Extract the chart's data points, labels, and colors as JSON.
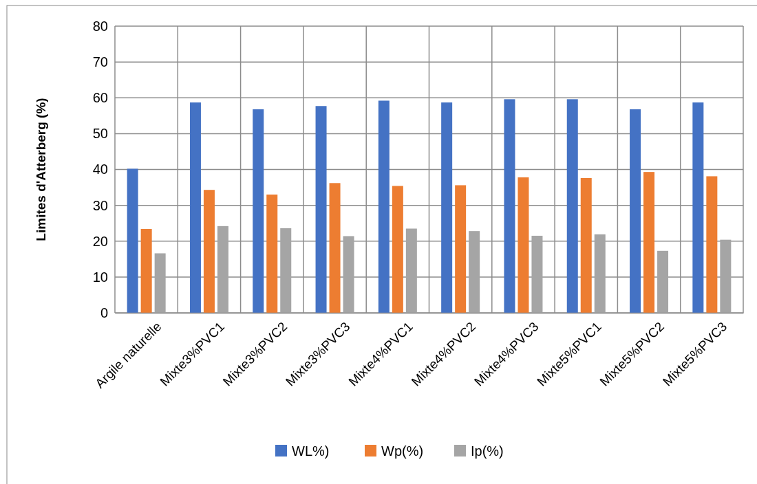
{
  "chart_data": {
    "type": "bar",
    "ylabel": "Limites d'Atterberg (%)",
    "categories": [
      "Argile naturelle",
      "Mixte3%PVC1",
      "Mixte3%PVC2",
      "Mixte3%PVC3",
      "Mixte4%PVC1",
      "Mixte4%PVC2",
      "Mixte4%PVC3",
      "Mixte5%PVC1",
      "Mixte5%PVC2",
      "Mixte5%PVC3"
    ],
    "series": [
      {
        "name": "WL%)",
        "color": "#4472c4",
        "values": [
          40.2,
          58.7,
          56.8,
          57.7,
          59.2,
          58.7,
          59.6,
          59.6,
          56.8,
          58.7
        ]
      },
      {
        "name": "Wp(%)",
        "color": "#ed7d31",
        "values": [
          23.4,
          34.3,
          33.0,
          36.2,
          35.4,
          35.6,
          37.8,
          37.6,
          39.3,
          38.1
        ]
      },
      {
        "name": "Ip(%)",
        "color": "#a5a5a5",
        "values": [
          16.6,
          24.2,
          23.6,
          21.4,
          23.5,
          22.8,
          21.5,
          21.9,
          17.3,
          20.4
        ]
      }
    ],
    "ylim": [
      0,
      80
    ],
    "yticks": [
      0,
      10,
      20,
      30,
      40,
      50,
      60,
      70,
      80
    ],
    "grid": true,
    "legend": "bottom"
  }
}
